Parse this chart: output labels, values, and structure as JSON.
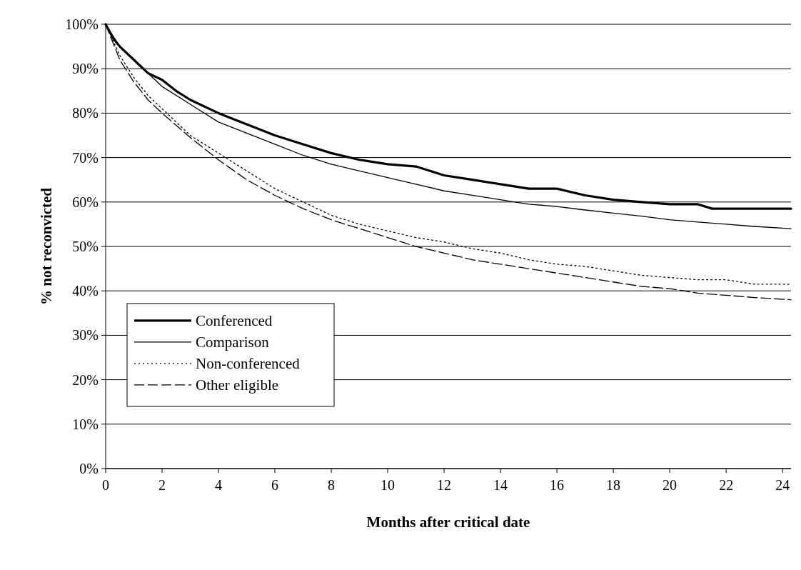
{
  "chart_data": {
    "type": "line",
    "xlabel": "Months after critical date",
    "ylabel": "% not reconvicted",
    "xlim": [
      0,
      24.3
    ],
    "xticks": [
      0,
      2,
      4,
      6,
      8,
      10,
      12,
      14,
      16,
      18,
      20,
      22,
      24
    ],
    "ylim": [
      0,
      100
    ],
    "yticks": [
      {
        "value": 0,
        "label": "0%"
      },
      {
        "value": 10,
        "label": "10%"
      },
      {
        "value": 20,
        "label": "20%"
      },
      {
        "value": 30,
        "label": "30%"
      },
      {
        "value": 40,
        "label": "40%"
      },
      {
        "value": 50,
        "label": "50%"
      },
      {
        "value": 60,
        "label": "60%"
      },
      {
        "value": 70,
        "label": "70%"
      },
      {
        "value": 80,
        "label": "80%"
      },
      {
        "value": 90,
        "label": "90%"
      },
      {
        "value": 100,
        "label": "100%"
      }
    ],
    "grid": "y",
    "legend": "bottom left",
    "marker": "none",
    "series": [
      {
        "name": "Conferenced",
        "color": "#000000",
        "line_style": "solid",
        "x": [
          0,
          0.25,
          0.5,
          1,
          1.5,
          2,
          2.5,
          3,
          4,
          5,
          6,
          7,
          8,
          9,
          10,
          11,
          12,
          13,
          14,
          15,
          16,
          17,
          18,
          19,
          20,
          21,
          21.5,
          24.3
        ],
        "values": [
          100,
          97,
          95,
          92,
          89,
          87.5,
          85,
          83,
          80,
          77.5,
          75,
          73,
          71,
          69.5,
          68.5,
          68,
          66,
          65,
          64,
          63,
          63,
          61.5,
          60.5,
          60,
          59.5,
          59.5,
          58.5,
          58.5
        ]
      },
      {
        "name": "Comparison",
        "color": "#000000",
        "line_style": "solid",
        "x": [
          0,
          0.5,
          1,
          2,
          3,
          4,
          5,
          6,
          7,
          8,
          9,
          10,
          11,
          12,
          13,
          14,
          15,
          16,
          17,
          18,
          19,
          20,
          21,
          22,
          23,
          24.3
        ],
        "values": [
          100,
          95,
          92,
          86,
          82,
          78,
          75.5,
          73,
          70.5,
          68.5,
          67,
          65.5,
          64,
          62.5,
          61.5,
          60.5,
          59.5,
          59,
          58.2,
          57.5,
          56.8,
          56,
          55.5,
          55,
          54.5,
          54
        ]
      },
      {
        "name": "Non-conferenced",
        "color": "#000000",
        "line_style": "dotted",
        "x": [
          0,
          0.5,
          1,
          1.5,
          2,
          3,
          4,
          5,
          6,
          7,
          8,
          9,
          10,
          11,
          12,
          13,
          14,
          15,
          16,
          17,
          18,
          19,
          20,
          21,
          22,
          23,
          24.3
        ],
        "values": [
          100,
          93,
          88,
          84,
          81,
          75,
          71,
          67,
          63,
          60,
          57,
          55,
          53.5,
          52,
          51,
          49.5,
          48.5,
          47,
          46,
          45.5,
          44.5,
          43.5,
          43,
          42.5,
          42.5,
          41.5,
          41.5
        ]
      },
      {
        "name": "Other eligible",
        "color": "#000000",
        "line_style": "dashed",
        "x": [
          0,
          0.5,
          1,
          1.5,
          2,
          3,
          4,
          5,
          6,
          7,
          8,
          9,
          10,
          11,
          12,
          13,
          14,
          15,
          16,
          17,
          18,
          19,
          20,
          21,
          22,
          23,
          24.3
        ],
        "values": [
          100,
          92,
          87,
          83,
          80,
          74.5,
          69.5,
          65,
          61.5,
          58.5,
          56,
          54,
          52,
          50,
          48.5,
          47,
          46,
          45,
          44,
          43,
          42,
          41,
          40.5,
          39.5,
          39,
          38.5,
          38
        ]
      }
    ]
  }
}
